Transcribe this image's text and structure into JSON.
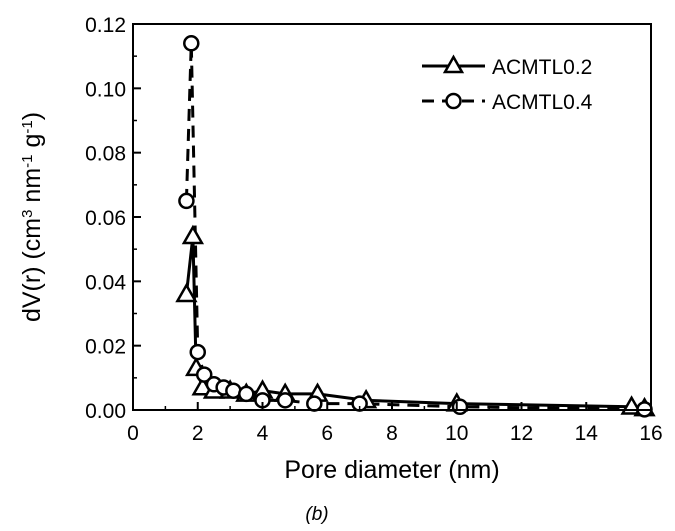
{
  "chart_data": {
    "type": "line",
    "xlabel": "Pore diameter (nm)",
    "ylabel_parts": [
      "dV(r) (cm",
      "3",
      " nm",
      "-1",
      " g",
      "-1",
      ")"
    ],
    "xlim": [
      0,
      16
    ],
    "ylim": [
      0,
      0.12
    ],
    "x_ticks": [
      "0",
      "2",
      "4",
      "6",
      "8",
      "10",
      "12",
      "14",
      "16"
    ],
    "y_ticks": [
      "0.00",
      "0.02",
      "0.04",
      "0.06",
      "0.08",
      "0.10",
      "0.12"
    ],
    "legend_position": "top-right",
    "caption": "(b)",
    "series": [
      {
        "name": "ACMTL0.2",
        "marker": "triangle",
        "dash": "solid",
        "x": [
          1.65,
          1.85,
          1.95,
          2.15,
          2.5,
          3.0,
          3.5,
          4.0,
          4.7,
          5.7,
          7.2,
          10.0,
          15.4,
          15.8
        ],
        "y": [
          0.036,
          0.054,
          0.013,
          0.007,
          0.006,
          0.006,
          0.005,
          0.006,
          0.005,
          0.005,
          0.003,
          0.002,
          0.001,
          0.0005
        ]
      },
      {
        "name": "ACMTL0.4",
        "marker": "circle",
        "dash": "dashed",
        "x": [
          1.65,
          1.8,
          2.0,
          2.2,
          2.5,
          2.8,
          3.1,
          3.5,
          4.0,
          4.7,
          5.6,
          7.0,
          10.1,
          15.8
        ],
        "y": [
          0.065,
          0.114,
          0.018,
          0.011,
          0.008,
          0.007,
          0.006,
          0.005,
          0.003,
          0.003,
          0.002,
          0.002,
          0.001,
          0.0002
        ]
      }
    ]
  }
}
